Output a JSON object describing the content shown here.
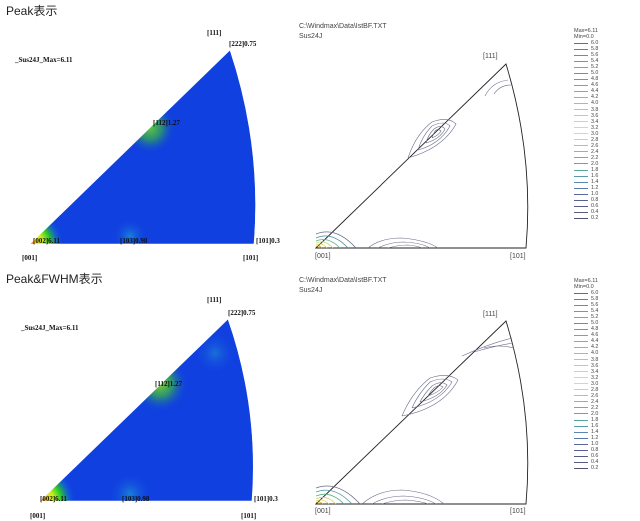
{
  "sections": [
    {
      "title": "Peak表示",
      "filled": {
        "label_111": "[111]",
        "label_222": "[222]0.75",
        "label_max": "_Sus24J_Max=6.11",
        "label_112": "[112]1.27",
        "label_002": "[002]6.11",
        "label_103": "[103]0.98",
        "label_101v": "[101]0.3",
        "label_001": "[001]",
        "label_101": "[101]"
      },
      "contour": {
        "path": "C:\\Windmax\\Data\\IstBF.TXT",
        "sample": "Sus24J",
        "label_111": "[111]",
        "label_001": "[001]",
        "label_101": "[101]"
      },
      "legend": {
        "max": "Max=6.11",
        "min": "Min=0.0"
      }
    },
    {
      "title": "Peak&FWHM表示",
      "filled": {
        "label_111": "[111]",
        "label_222": "[222]0.75",
        "label_max": "_Sus24J_Max=6.11",
        "label_112": "[112]1.27",
        "label_002": "[002]6.11",
        "label_103": "[103]0.98",
        "label_101v": "[101]0.3",
        "label_001": "[001]",
        "label_101": "[101]"
      },
      "contour": {
        "path": "C:\\Windmax\\Data\\IstBF.TXT",
        "sample": "Sus24J",
        "label_111": "[111]",
        "label_001": "[001]",
        "label_101": "[101]"
      },
      "legend": {
        "max": "Max=6.11",
        "min": "Min=0.0"
      }
    }
  ],
  "legend_levels": [
    {
      "value": "6.0",
      "color": "#b05050"
    },
    {
      "value": "5.8",
      "color": "#b36262"
    },
    {
      "value": "5.6",
      "color": "#b86f6f"
    },
    {
      "value": "5.4",
      "color": "#c07a7a"
    },
    {
      "value": "5.2",
      "color": "#c88585"
    },
    {
      "value": "5.0",
      "color": "#c86b6b"
    },
    {
      "value": "4.8",
      "color": "#c97a5a"
    },
    {
      "value": "4.6",
      "color": "#cc8a50"
    },
    {
      "value": "4.4",
      "color": "#cf9a48"
    },
    {
      "value": "4.2",
      "color": "#d2aa40"
    },
    {
      "value": "4.0",
      "color": "#d5ba38"
    },
    {
      "value": "3.8",
      "color": "#d8c838"
    },
    {
      "value": "3.6",
      "color": "#e0d040"
    },
    {
      "value": "3.4",
      "color": "#e6d850"
    },
    {
      "value": "3.2",
      "color": "#eadc60"
    },
    {
      "value": "3.0",
      "color": "#dfe070"
    },
    {
      "value": "2.8",
      "color": "#c8dc70"
    },
    {
      "value": "2.6",
      "color": "#a8d070"
    },
    {
      "value": "2.4",
      "color": "#88c470"
    },
    {
      "value": "2.2",
      "color": "#70b870"
    },
    {
      "value": "2.0",
      "color": "#60b080"
    },
    {
      "value": "1.8",
      "color": "#58a898"
    },
    {
      "value": "1.6",
      "color": "#5898a8"
    },
    {
      "value": "1.4",
      "color": "#5888b0"
    },
    {
      "value": "1.2",
      "color": "#5878a8"
    },
    {
      "value": "1.0",
      "color": "#58689c"
    },
    {
      "value": "0.8",
      "color": "#5a6090"
    },
    {
      "value": "0.6",
      "color": "#5a5a88"
    },
    {
      "value": "0.4",
      "color": "#585a80"
    },
    {
      "value": "0.2",
      "color": "#505070"
    }
  ]
}
